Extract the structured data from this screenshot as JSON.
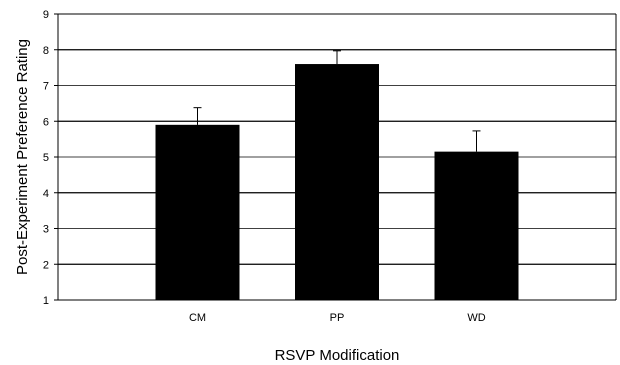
{
  "chart_data": {
    "type": "bar",
    "title": "",
    "xlabel": "RSVP Modification",
    "ylabel": "Post-Experiment Preference Rating",
    "categories": [
      "CM",
      "PP",
      "WD"
    ],
    "series": [
      {
        "values": [
          5.9,
          7.6,
          5.15
        ],
        "error_upper": [
          0.48,
          0.37,
          0.58
        ]
      }
    ],
    "ylim": [
      1,
      9
    ],
    "yticks": [
      1,
      2,
      3,
      4,
      5,
      6,
      7,
      8,
      9
    ],
    "grid": true,
    "legend": "none",
    "colors": {
      "bar": "#000000",
      "grid": "#000000",
      "background": "#ffffff"
    }
  }
}
